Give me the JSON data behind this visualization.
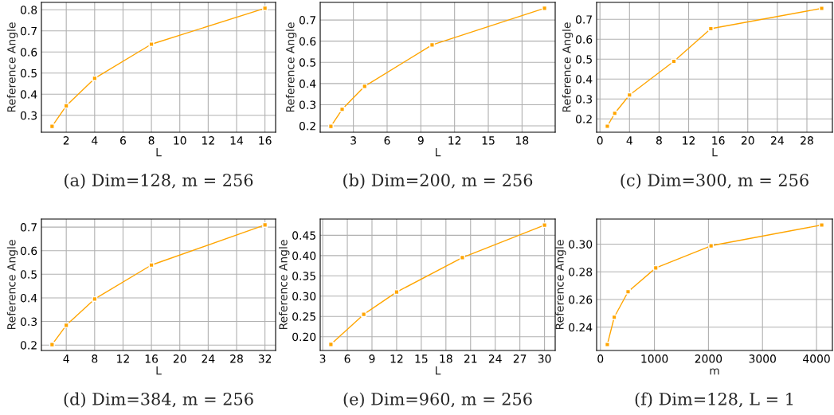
{
  "chart_data": [
    {
      "type": "line",
      "title": "(a) Dim=128, m = 256",
      "xlabel": "L",
      "ylabel": "Reference Angle",
      "x": [
        1,
        2,
        4,
        8,
        16
      ],
      "series": [
        {
          "color": "#ffa500",
          "values": [
            0.248,
            0.345,
            0.475,
            0.637,
            0.807
          ]
        }
      ],
      "xlim": [
        0.25,
        16.75
      ],
      "xticks": [
        2,
        4,
        6,
        8,
        10,
        12,
        14,
        16
      ],
      "ylim": [
        0.22,
        0.835
      ],
      "yticks": [
        0.3,
        0.4,
        0.5,
        0.6,
        0.7,
        0.8
      ],
      "grid": true,
      "marker": "square",
      "line_style": "solid",
      "legend": false
    },
    {
      "type": "line",
      "title": "(b) Dim=200, m = 256",
      "xlabel": "L",
      "ylabel": "Reference Angle",
      "x": [
        1,
        2,
        4,
        10,
        20
      ],
      "series": [
        {
          "color": "#ffa500",
          "values": [
            0.198,
            0.278,
            0.387,
            0.582,
            0.755
          ]
        }
      ],
      "xlim": [
        0.05,
        20.95
      ],
      "xticks": [
        3,
        6,
        9,
        12,
        15,
        18
      ],
      "ylim": [
        0.17,
        0.783
      ],
      "yticks": [
        0.2,
        0.3,
        0.4,
        0.5,
        0.6,
        0.7
      ],
      "grid": true,
      "marker": "square",
      "line_style": "solid",
      "legend": false
    },
    {
      "type": "line",
      "title": "(c) Dim=300, m = 256",
      "xlabel": "L",
      "ylabel": "Reference Angle",
      "x": [
        1,
        2,
        4,
        10,
        15,
        30
      ],
      "series": [
        {
          "color": "#ffa500",
          "values": [
            0.163,
            0.228,
            0.32,
            0.489,
            0.653,
            0.755
          ]
        }
      ],
      "xlim": [
        -0.45,
        31.45
      ],
      "xticks": [
        0,
        4,
        8,
        12,
        16,
        20,
        24,
        28
      ],
      "ylim": [
        0.133,
        0.785
      ],
      "yticks": [
        0.2,
        0.3,
        0.4,
        0.5,
        0.6,
        0.7
      ],
      "grid": true,
      "marker": "square",
      "line_style": "solid",
      "legend": false
    },
    {
      "type": "line",
      "title": "(d) Dim=384, m = 256",
      "xlabel": "L",
      "ylabel": "Reference Angle",
      "x": [
        2,
        4,
        8,
        16,
        32
      ],
      "series": [
        {
          "color": "#ffa500",
          "values": [
            0.202,
            0.284,
            0.395,
            0.539,
            0.709
          ]
        }
      ],
      "xlim": [
        0.5,
        33.5
      ],
      "xticks": [
        4,
        8,
        12,
        16,
        20,
        24,
        28,
        32
      ],
      "ylim": [
        0.177,
        0.734
      ],
      "yticks": [
        0.2,
        0.3,
        0.4,
        0.5,
        0.6,
        0.7
      ],
      "grid": true,
      "marker": "square",
      "line_style": "solid",
      "legend": false
    },
    {
      "type": "line",
      "title": "(e) Dim=960, m = 256",
      "xlabel": "L",
      "ylabel": "Reference Angle",
      "x": [
        4,
        8,
        12,
        20,
        30
      ],
      "series": [
        {
          "color": "#ffa500",
          "values": [
            0.181,
            0.255,
            0.31,
            0.395,
            0.475
          ]
        }
      ],
      "xlim": [
        2.7,
        31.3
      ],
      "xticks": [
        3,
        6,
        9,
        12,
        15,
        18,
        21,
        24,
        27,
        30
      ],
      "ylim": [
        0.166,
        0.49
      ],
      "yticks": [
        {
          "value": 0.2,
          "label": "0.20"
        },
        0.25,
        {
          "value": 0.3,
          "label": "0.30"
        },
        0.35,
        {
          "value": 0.4,
          "label": "0.40"
        },
        0.45
      ],
      "grid": true,
      "marker": "square",
      "line_style": "solid",
      "legend": false
    },
    {
      "type": "line",
      "title": "(f) Dim=128, L = 1",
      "xlabel": "m",
      "ylabel": "Reference Angle",
      "x": [
        128,
        256,
        512,
        1024,
        2048,
        4096
      ],
      "series": [
        {
          "color": "#ffa500",
          "values": [
            0.2275,
            0.2472,
            0.2656,
            0.2828,
            0.2988,
            0.3138
          ]
        }
      ],
      "xlim": [
        -70,
        4294
      ],
      "xticks": [
        0,
        1000,
        2000,
        3000,
        4000
      ],
      "ylim": [
        0.2232,
        0.3181
      ],
      "yticks": [
        0.24,
        0.26,
        0.28,
        {
          "value": 0.3,
          "label": "0.30"
        }
      ],
      "grid": true,
      "marker": "square",
      "line_style": "solid",
      "legend": false
    }
  ]
}
